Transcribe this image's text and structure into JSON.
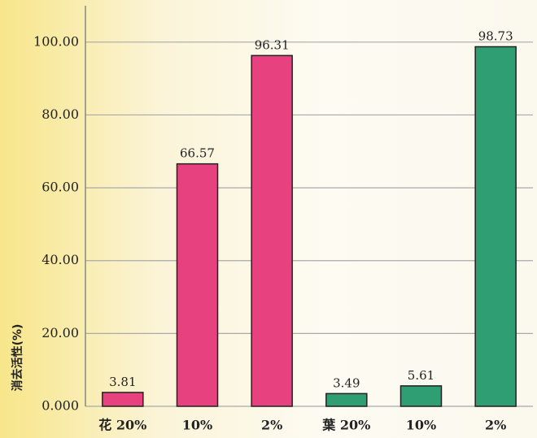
{
  "chart_data": {
    "type": "bar",
    "y_label": "消去活性(%)",
    "categories": [
      "花 20%",
      "10%",
      "2%",
      "葉 20%",
      "10%",
      "2%"
    ],
    "values": [
      3.81,
      66.57,
      96.31,
      3.49,
      5.61,
      98.73
    ],
    "colors": [
      "#e8417f",
      "#e8417f",
      "#e8417f",
      "#2f9e72",
      "#2f9e72",
      "#2f9e72"
    ],
    "ylim": [
      0,
      110
    ],
    "yticks": [
      {
        "value": 0,
        "label": "0.000"
      },
      {
        "value": 20,
        "label": "20.00"
      },
      {
        "value": 40,
        "label": "40.00"
      },
      {
        "value": 60,
        "label": "60.00"
      },
      {
        "value": 80,
        "label": "80.00"
      },
      {
        "value": 100,
        "label": "100.00"
      }
    ],
    "grid": true
  }
}
